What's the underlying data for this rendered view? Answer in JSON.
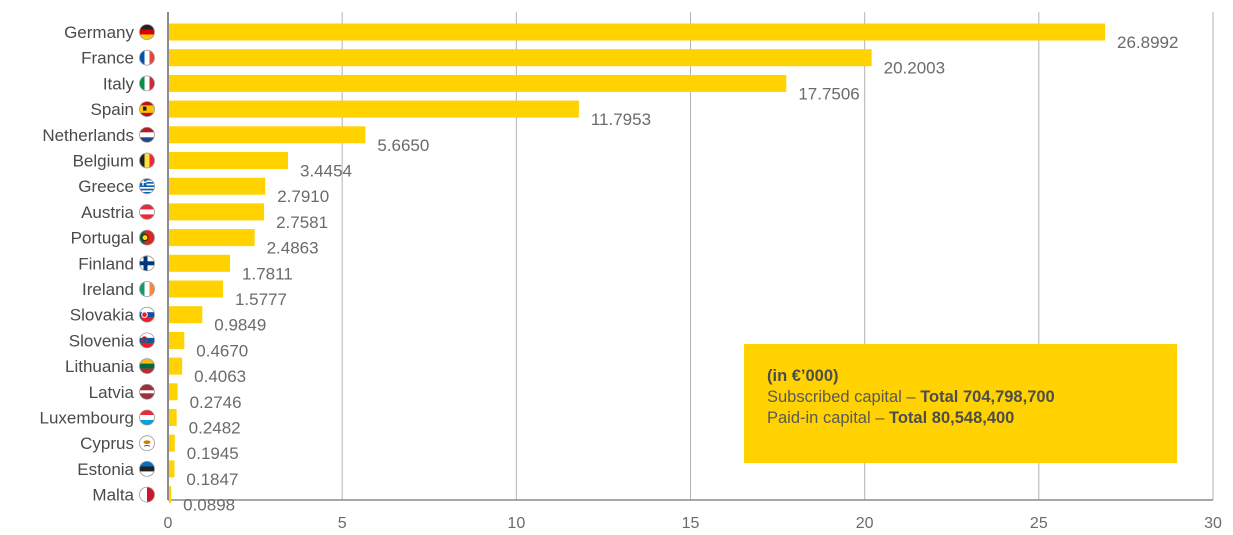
{
  "chart_data": {
    "type": "bar",
    "orientation": "horizontal",
    "categories": [
      "Germany",
      "France",
      "Italy",
      "Spain",
      "Netherlands",
      "Belgium",
      "Greece",
      "Austria",
      "Portugal",
      "Finland",
      "Ireland",
      "Slovakia",
      "Slovenia",
      "Lithuania",
      "Latvia",
      "Luxembourg",
      "Cyprus",
      "Estonia",
      "Malta"
    ],
    "values": [
      26.8992,
      20.2003,
      17.7506,
      11.7953,
      5.665,
      3.4454,
      2.791,
      2.7581,
      2.4863,
      1.7811,
      1.5777,
      0.9849,
      0.467,
      0.4063,
      0.2746,
      0.2482,
      0.1945,
      0.1847,
      0.0898
    ],
    "value_labels": [
      "26.8992",
      "20.2003",
      "17.7506",
      "11.7953",
      "5.6650",
      "3.4454",
      "2.7910",
      "2.7581",
      "2.4863",
      "1.7811",
      "1.5777",
      "0.9849",
      "0.4670",
      "0.4063",
      "0.2746",
      "0.2482",
      "0.1945",
      "0.1847",
      "0.0898"
    ],
    "flag_icons": [
      "flag-germany-icon",
      "flag-france-icon",
      "flag-italy-icon",
      "flag-spain-icon",
      "flag-netherlands-icon",
      "flag-belgium-icon",
      "flag-greece-icon",
      "flag-austria-icon",
      "flag-portugal-icon",
      "flag-finland-icon",
      "flag-ireland-icon",
      "flag-slovakia-icon",
      "flag-slovenia-icon",
      "flag-lithuania-icon",
      "flag-latvia-icon",
      "flag-luxembourg-icon",
      "flag-cyprus-icon",
      "flag-estonia-icon",
      "flag-malta-icon"
    ],
    "xlim": [
      0,
      30
    ],
    "x_ticks": [
      0,
      5,
      10,
      15,
      20,
      25,
      30
    ],
    "grid": "vertical",
    "bar_color": "#FFD200",
    "grid_color": "#b3b3b3",
    "legend": {
      "unit": "(in €’000)",
      "line1_prefix": "Subscribed capital – ",
      "line1_bold": "Total 704,798,700",
      "line2_prefix": "Paid-in capital – ",
      "line2_bold": "Total 80,548,400",
      "placement": "bottom-right",
      "background": "#FFD200"
    }
  }
}
